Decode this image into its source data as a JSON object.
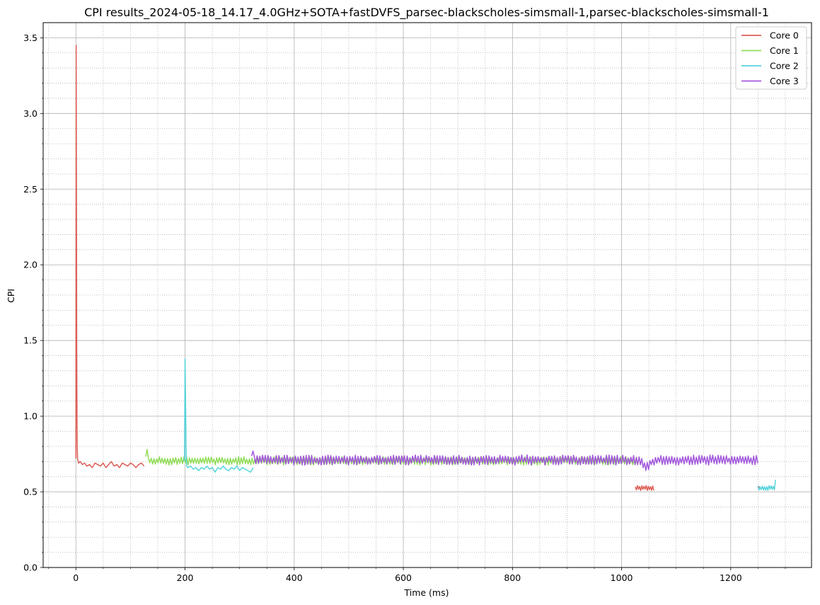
{
  "chart_data": {
    "type": "line",
    "title": "CPI results_2024-05-18_14.17_4.0GHz+SOTA+fastDVFS_parsec-blackscholes-simsmall-1,parsec-blackscholes-simsmall-1",
    "xlabel": "Time (ms)",
    "ylabel": "CPI",
    "xlim": [
      -60,
      1348
    ],
    "ylim": [
      0,
      3.6
    ],
    "x_ticks": [
      0,
      200,
      400,
      600,
      800,
      1000,
      1200
    ],
    "x_tick_labels": [
      "0",
      "200",
      "400",
      "600",
      "800",
      "1000",
      "1200"
    ],
    "y_ticks": [
      0,
      0.5,
      1.0,
      1.5,
      2.0,
      2.5,
      3.0,
      3.5
    ],
    "y_tick_labels": [
      "0.0",
      "0.5",
      "1.0",
      "1.5",
      "2.0",
      "2.5",
      "3.0",
      "3.5"
    ],
    "grid": {
      "major": true,
      "minor": true
    },
    "legend_position": "top-right",
    "series": [
      {
        "name": "Core 0",
        "color": "#db5f57",
        "segments": [
          {
            "x": [
              0,
              0.5,
              1,
              1.5,
              2,
              2.5,
              3,
              5,
              8,
              12,
              16,
              20,
              25,
              30,
              35,
              40,
              45,
              50,
              55,
              60,
              65,
              70,
              75,
              80,
              85,
              90,
              95,
              100,
              105,
              110,
              115,
              120,
              125
            ],
            "y": [
              0.72,
              3.45,
              2.5,
              1.5,
              1.0,
              0.8,
              0.72,
              0.69,
              0.7,
              0.68,
              0.69,
              0.67,
              0.68,
              0.66,
              0.69,
              0.68,
              0.67,
              0.69,
              0.66,
              0.68,
              0.7,
              0.67,
              0.68,
              0.66,
              0.69,
              0.68,
              0.67,
              0.69,
              0.68,
              0.66,
              0.68,
              0.69,
              0.67
            ]
          },
          {
            "x_start": 1025,
            "x_end": 1060,
            "center": 0.525,
            "amplitude": 0.022,
            "step": 2
          },
          {
            "x_start": 1250,
            "x_end": 1253,
            "center": 0.53,
            "amplitude": 0.01,
            "step": 1
          }
        ]
      },
      {
        "name": "Core 1",
        "color": "#91dc57",
        "segments": [
          {
            "x_start": 128,
            "x_end": 1030,
            "center": 0.705,
            "amplitude": 0.035,
            "step": 2.5,
            "peak_x": 130,
            "peak_y": 0.78
          }
        ]
      },
      {
        "name": "Core 2",
        "color": "#57d3db",
        "segments": [
          {
            "x": [
              198,
              199,
              200,
              201,
              202,
              203,
              205,
              210,
              215,
              220,
              225,
              230,
              235,
              240,
              245,
              250,
              255,
              260,
              265,
              270,
              275,
              280,
              285,
              290,
              295,
              300,
              305,
              310,
              315,
              320,
              325
            ],
            "y": [
              0.7,
              0.72,
              1.38,
              1.1,
              0.75,
              0.67,
              0.66,
              0.67,
              0.65,
              0.66,
              0.64,
              0.66,
              0.65,
              0.67,
              0.65,
              0.66,
              0.63,
              0.66,
              0.65,
              0.67,
              0.65,
              0.64,
              0.66,
              0.65,
              0.67,
              0.64,
              0.66,
              0.65,
              0.64,
              0.63,
              0.66
            ]
          },
          {
            "x_start": 1250,
            "x_end": 1283,
            "center": 0.525,
            "amplitude": 0.02,
            "step": 2,
            "peak_x": 1282,
            "peak_y": 0.58
          }
        ]
      },
      {
        "name": "Core 3",
        "color": "#a157db",
        "segments": [
          {
            "x_start": 322,
            "x_end": 1250,
            "center": 0.71,
            "amplitude": 0.042,
            "step": 2.5,
            "peak_x": 324,
            "peak_y": 0.77,
            "dip_x": 1045,
            "dip_y": 0.64
          }
        ]
      }
    ]
  }
}
